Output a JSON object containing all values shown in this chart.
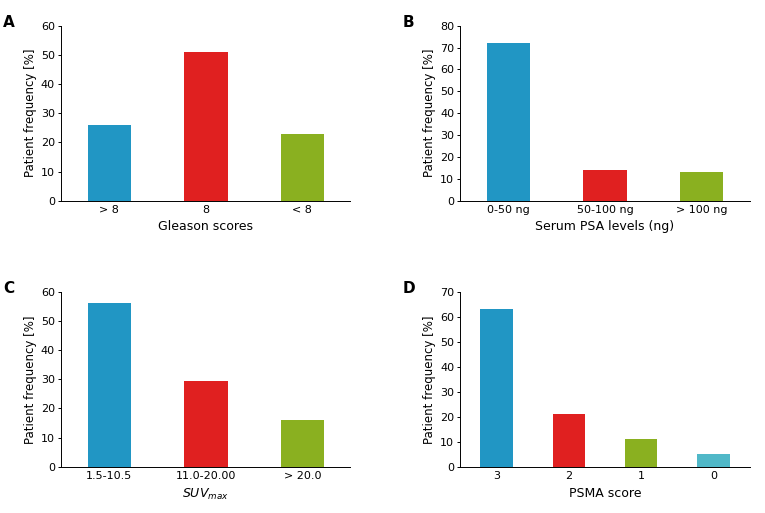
{
  "A": {
    "categories": [
      "> 8",
      "8",
      "< 8"
    ],
    "values": [
      26,
      51,
      23
    ],
    "colors": [
      "#2196c4",
      "#e02020",
      "#8ab020"
    ],
    "xlabel": "Gleason scores",
    "ylabel": "Patient frequency [%]",
    "ylim": [
      0,
      60
    ],
    "yticks": [
      0,
      10,
      20,
      30,
      40,
      50,
      60
    ],
    "label": "A"
  },
  "B": {
    "categories": [
      "0-50 ng",
      "50-100 ng",
      "> 100 ng"
    ],
    "values": [
      72,
      14,
      13
    ],
    "colors": [
      "#2196c4",
      "#e02020",
      "#8ab020"
    ],
    "xlabel": "Serum PSA levels (ng)",
    "ylabel": "Patient frequency [%]",
    "ylim": [
      0,
      80
    ],
    "yticks": [
      0,
      10,
      20,
      30,
      40,
      50,
      60,
      70,
      80
    ],
    "label": "B"
  },
  "C": {
    "categories": [
      "1.5-10.5",
      "11.0-20.00",
      "> 20.0"
    ],
    "values": [
      56,
      29.5,
      16
    ],
    "colors": [
      "#2196c4",
      "#e02020",
      "#8ab020"
    ],
    "xlabel": "SUV",
    "xlabel_sub": "max",
    "ylabel": "Patient frequency [%]",
    "ylim": [
      0,
      60
    ],
    "yticks": [
      0,
      10,
      20,
      30,
      40,
      50,
      60
    ],
    "label": "C"
  },
  "D": {
    "categories": [
      "3",
      "2",
      "1",
      "0"
    ],
    "values": [
      63,
      21,
      11,
      5
    ],
    "colors": [
      "#2196c4",
      "#e02020",
      "#8ab020",
      "#50b8c8"
    ],
    "xlabel": "PSMA score",
    "ylabel": "Patient frequency [%]",
    "ylim": [
      0,
      70
    ],
    "yticks": [
      0,
      10,
      20,
      30,
      40,
      50,
      60,
      70
    ],
    "label": "D"
  },
  "background_color": "#ffffff",
  "bar_width": 0.45,
  "tick_fontsize": 8,
  "xlabel_fontsize": 9,
  "ylabel_fontsize": 8.5,
  "panel_label_fontsize": 11
}
